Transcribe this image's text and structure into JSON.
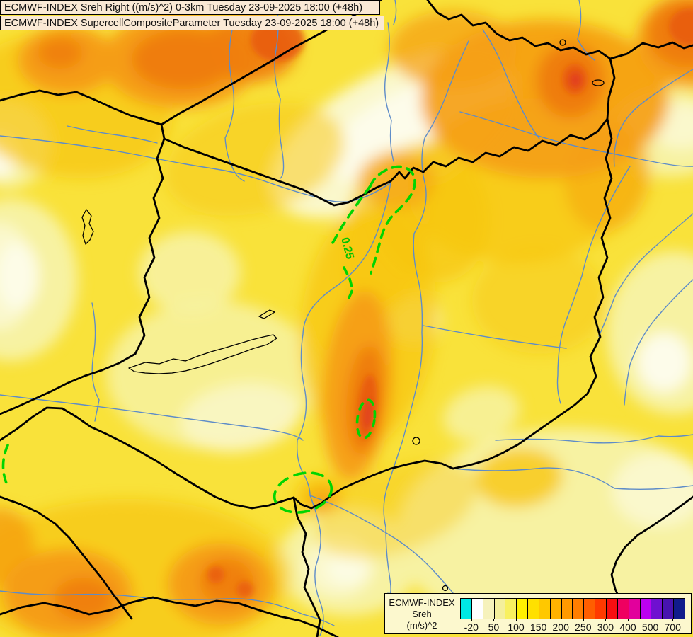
{
  "titles": {
    "line1": "ECMWF-INDEX Sreh Right ((m/s)^2) 0-3km Tuesday 23-09-2025 18:00 (+48h)",
    "line2": "ECMWF-INDEX SupercellCompositeParameter Tuesday 23-09-2025 18:00 (+48h)"
  },
  "map": {
    "contour_label": "0.25",
    "contour_color": "#00D500",
    "border_color": "#000000",
    "river_color": "#5E8CC8",
    "base_fill": "#F9E23A"
  },
  "legend": {
    "title_lines": [
      "ECMWF-INDEX",
      "Sreh",
      "(m/s)^2"
    ],
    "tick_labels": [
      "-20",
      "50",
      "100",
      "150",
      "200",
      "250",
      "300",
      "400",
      "500",
      "700"
    ],
    "cell_colors": [
      "#00E8E4",
      "#FFFFFF",
      "#F6F2BC",
      "#F4EF9C",
      "#F8F060",
      "#FFF000",
      "#FFE000",
      "#FFC800",
      "#FFB200",
      "#FF9A00",
      "#FF7E00",
      "#FF5E00",
      "#FF3A00",
      "#F80E10",
      "#EF0060",
      "#E2009C",
      "#BC00F0",
      "#6F10D0",
      "#4813B0",
      "#111C8C"
    ],
    "box_bg": "#FCF8CE"
  }
}
